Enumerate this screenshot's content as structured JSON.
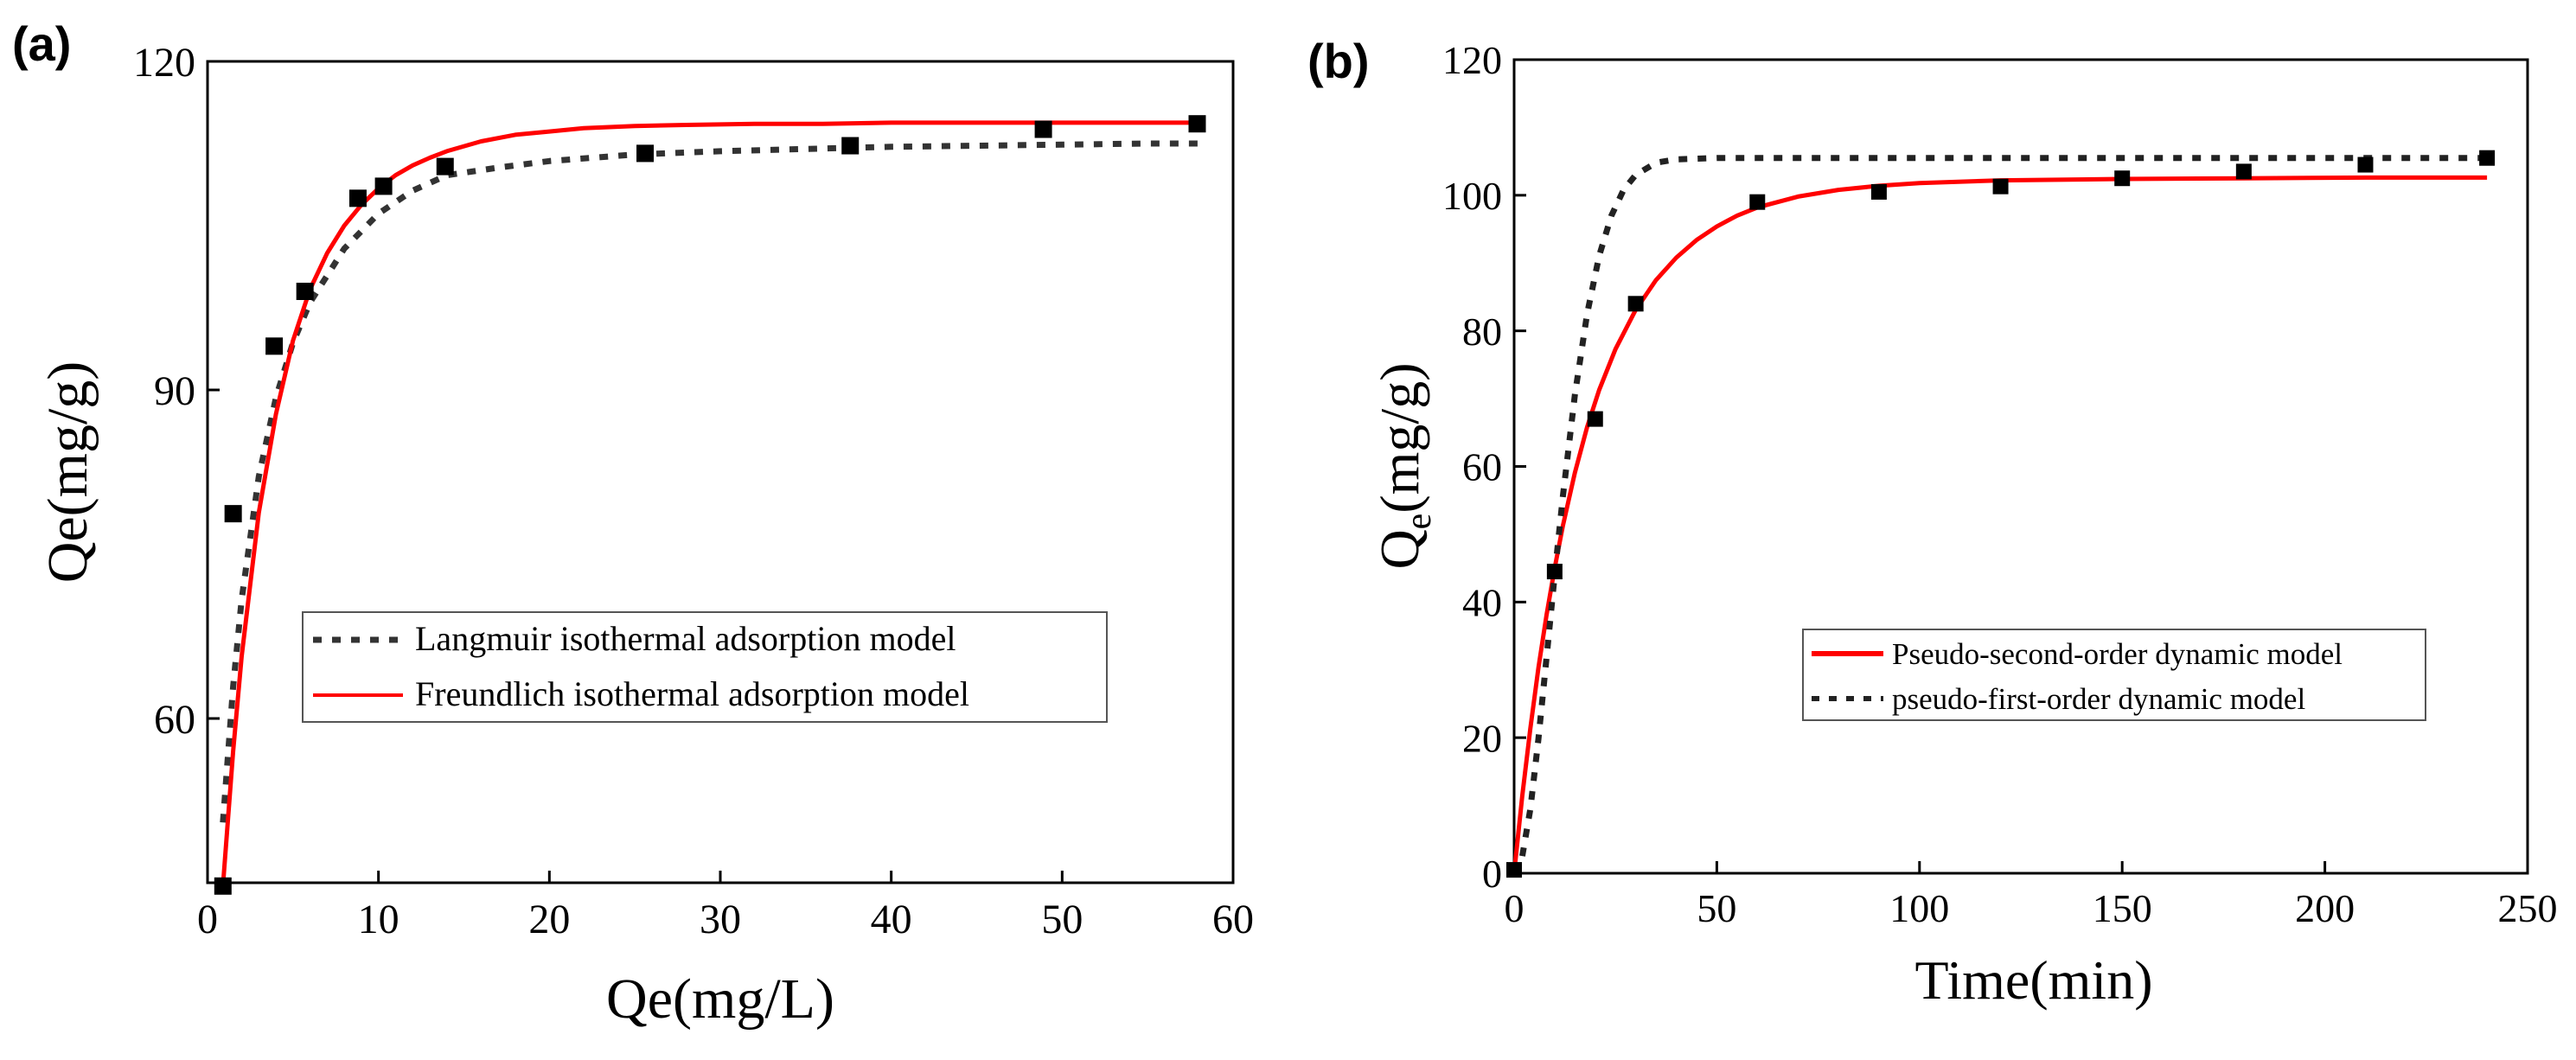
{
  "chart_data": [
    {
      "panel": "(a)",
      "type": "scatter",
      "title": "",
      "xlabel": "Qe(mg/L)",
      "ylabel": "Qe(mg/g)",
      "xlim": [
        0,
        60
      ],
      "ylim": [
        45,
        120
      ],
      "xticks": [
        0,
        10,
        20,
        30,
        40,
        50,
        60
      ],
      "yticks": [
        60,
        90,
        120
      ],
      "grid": false,
      "legend_position": "lower-right",
      "series": [
        {
          "kind": "points",
          "x": [
            0.9,
            1.5,
            3.9,
            5.7,
            8.8,
            10.3,
            13.9,
            25.6,
            37.6,
            48.9,
            57.9
          ],
          "y": [
            44.7,
            78.7,
            94.0,
            99.0,
            107.5,
            108.6,
            110.4,
            111.6,
            112.3,
            113.8,
            114.3
          ]
        },
        {
          "name": "Langmuir isothermal adsorption model",
          "kind": "line",
          "style": "dotted",
          "color": "#333333",
          "x": [
            0.9,
            1.5,
            2,
            3,
            4,
            5,
            6,
            8,
            10,
            12,
            14,
            17,
            20,
            25,
            30,
            35,
            40,
            45,
            50,
            55,
            58
          ],
          "y": [
            50.5,
            62.9,
            70.9,
            82.1,
            89.3,
            94.3,
            98.0,
            102.9,
            106.1,
            108.2,
            109.6,
            110.3,
            110.9,
            111.5,
            111.8,
            112.0,
            112.2,
            112.3,
            112.4,
            112.5,
            112.5
          ]
        },
        {
          "name": "Freundlich isothermal adsorption model",
          "kind": "line",
          "style": "solid",
          "color": "#ff0000",
          "x": [
            0.9,
            1.5,
            2,
            3,
            4,
            5,
            6,
            7,
            8,
            9,
            10,
            11,
            12,
            13,
            14,
            16,
            18,
            20,
            22,
            25,
            28,
            32,
            36,
            40,
            45,
            50,
            55,
            58
          ],
          "y": [
            44.7,
            57.0,
            65.7,
            78.8,
            87.8,
            94.5,
            99.2,
            102.5,
            105.0,
            106.9,
            108.4,
            109.6,
            110.5,
            111.2,
            111.8,
            112.7,
            113.3,
            113.6,
            113.9,
            114.1,
            114.2,
            114.3,
            114.3,
            114.4,
            114.4,
            114.4,
            114.4,
            114.4
          ]
        }
      ]
    },
    {
      "panel": "(b)",
      "type": "scatter",
      "title": "",
      "xlabel": "Time(min)",
      "ylabel": "Qe(mg/g)",
      "ylabel_main": "Q",
      "ylabel_sub": "e",
      "ylabel_rest": "(mg/g)",
      "xlim": [
        0,
        250
      ],
      "ylim": [
        0,
        120
      ],
      "xticks": [
        0,
        50,
        100,
        150,
        200,
        250
      ],
      "yticks": [
        0,
        20,
        40,
        60,
        80,
        100,
        120
      ],
      "grid": false,
      "legend_position": "lower-right",
      "series": [
        {
          "kind": "points",
          "x": [
            0,
            10,
            20,
            30,
            60,
            90,
            120,
            150,
            180,
            210,
            240
          ],
          "y": [
            0.5,
            44.5,
            67.0,
            84.0,
            99.0,
            100.5,
            101.3,
            102.5,
            103.5,
            104.5,
            105.5
          ]
        },
        {
          "name": "Pseudo-second-order dynamic model",
          "kind": "line",
          "style": "solid",
          "color": "#ff0000",
          "x": [
            0,
            2,
            4,
            6,
            8,
            10,
            12,
            15,
            18,
            21,
            25,
            30,
            35,
            40,
            45,
            50,
            55,
            60,
            70,
            80,
            90,
            100,
            120,
            150,
            180,
            210,
            240
          ],
          "y": [
            0,
            11.4,
            21.4,
            30.3,
            38.1,
            45.0,
            51.2,
            59.1,
            65.8,
            71.3,
            77.3,
            83.1,
            87.5,
            90.8,
            93.4,
            95.4,
            97.0,
            98.2,
            99.8,
            100.8,
            101.4,
            101.8,
            102.2,
            102.4,
            102.5,
            102.6,
            102.6
          ]
        },
        {
          "name": "pseudo-first-order dynamic model",
          "kind": "line",
          "style": "dotted",
          "color": "#222222",
          "x": [
            0,
            2,
            4,
            6,
            8,
            10,
            12,
            15,
            18,
            21,
            24,
            27,
            30,
            35,
            40,
            50,
            60,
            80,
            100,
            150,
            200,
            240
          ],
          "y": [
            0,
            2.5,
            9.5,
            19.8,
            31.8,
            44.0,
            55.5,
            70.6,
            82.5,
            91.1,
            97.0,
            100.8,
            103.0,
            104.8,
            105.3,
            105.5,
            105.5,
            105.5,
            105.5,
            105.5,
            105.5,
            105.5
          ]
        }
      ]
    }
  ]
}
